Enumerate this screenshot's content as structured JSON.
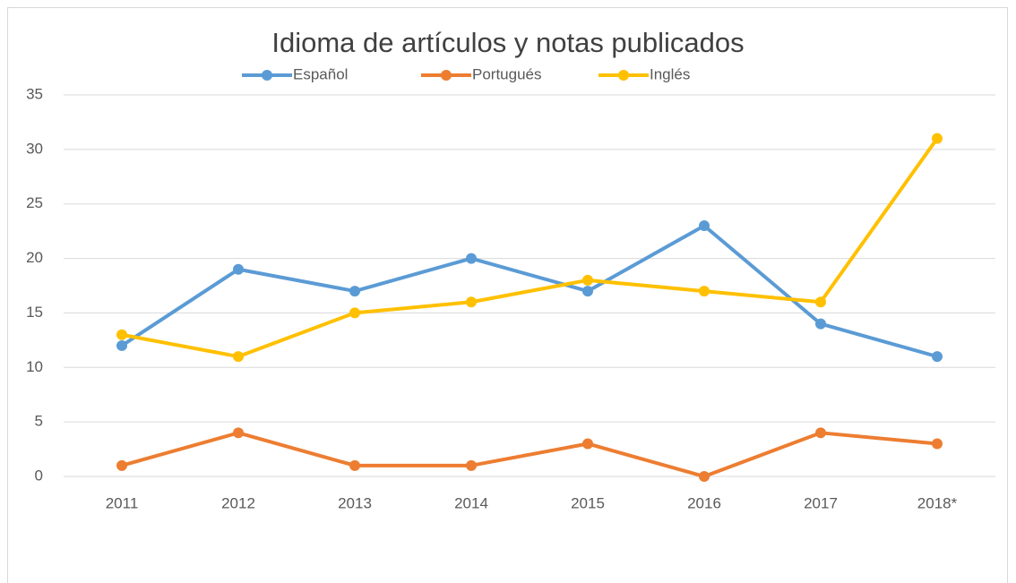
{
  "chart_data": {
    "type": "line",
    "title": "Idioma de artículos y notas publicados",
    "categories": [
      "2011",
      "2012",
      "2013",
      "2014",
      "2015",
      "2016",
      "2017",
      "2018*"
    ],
    "series": [
      {
        "name": "Español",
        "color": "#5b9bd5",
        "values": [
          12,
          19,
          17,
          20,
          17,
          23,
          14,
          11
        ]
      },
      {
        "name": "Portugués",
        "color": "#ed7d31",
        "values": [
          1,
          4,
          1,
          1,
          3,
          0,
          4,
          3
        ]
      },
      {
        "name": "Inglés",
        "color": "#ffc000",
        "values": [
          13,
          11,
          15,
          16,
          18,
          17,
          16,
          31
        ]
      }
    ],
    "ylim": [
      0,
      35
    ],
    "yticks": [
      0,
      5,
      10,
      15,
      20,
      25,
      30,
      35
    ],
    "grid": true,
    "legend": "top"
  }
}
